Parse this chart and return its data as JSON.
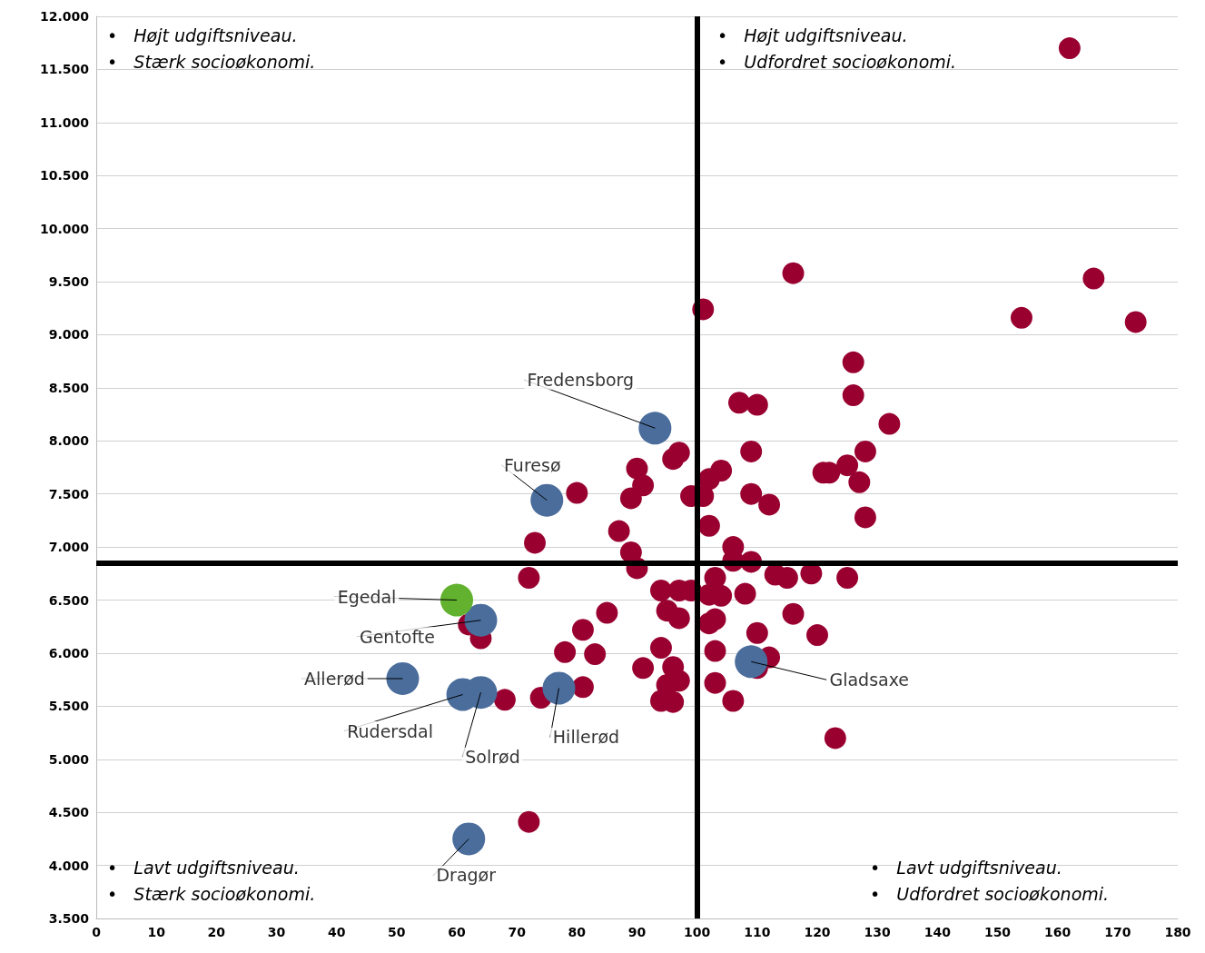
{
  "chart_data": {
    "type": "scatter",
    "xlim": [
      0,
      180
    ],
    "xticks": [
      0,
      10,
      20,
      30,
      40,
      50,
      60,
      70,
      80,
      90,
      100,
      110,
      120,
      130,
      140,
      150,
      160,
      170,
      180
    ],
    "ylim": [
      3500,
      12000
    ],
    "yticks": [
      {
        "value": 3500,
        "label": "3.500"
      },
      {
        "value": 4000,
        "label": "4.000"
      },
      {
        "value": 4500,
        "label": "4.500"
      },
      {
        "value": 5000,
        "label": "5.000"
      },
      {
        "value": 5500,
        "label": "5.500"
      },
      {
        "value": 6000,
        "label": "6.000"
      },
      {
        "value": 6500,
        "label": "6.500"
      },
      {
        "value": 7000,
        "label": "7.000"
      },
      {
        "value": 7500,
        "label": "7.500"
      },
      {
        "value": 8000,
        "label": "8.000"
      },
      {
        "value": 8500,
        "label": "8.500"
      },
      {
        "value": 9000,
        "label": "9.000"
      },
      {
        "value": 9500,
        "label": "9.500"
      },
      {
        "value": 10000,
        "label": "10.000"
      },
      {
        "value": 10500,
        "label": "10.500"
      },
      {
        "value": 11000,
        "label": "11.000"
      },
      {
        "value": 11500,
        "label": "11.500"
      },
      {
        "value": 12000,
        "label": "12.000"
      }
    ],
    "grid": "y",
    "marker": "circle",
    "series": [
      {
        "color": "#990030",
        "x": [
          162,
          116,
          166,
          154,
          173,
          101,
          126,
          126,
          107,
          110,
          132,
          96,
          97,
          109,
          128,
          121,
          122,
          125,
          127,
          128,
          104,
          102,
          80,
          90,
          91,
          89,
          99,
          101,
          109,
          112,
          102,
          87,
          73,
          89,
          106,
          106,
          109,
          90,
          72,
          103,
          113,
          115,
          119,
          125,
          94,
          97,
          99,
          102,
          104,
          108,
          95,
          97,
          85,
          81,
          102,
          103,
          116,
          110,
          120,
          62,
          64,
          78,
          83,
          94,
          103,
          112,
          110,
          91,
          96,
          95,
          97,
          103,
          81,
          68,
          74,
          94,
          96,
          106,
          123,
          72
        ],
        "values": [
          11700,
          9580,
          9530,
          9160,
          9120,
          9240,
          8740,
          8430,
          8360,
          8340,
          8160,
          7830,
          7890,
          7900,
          7900,
          7700,
          7700,
          7770,
          7610,
          7280,
          7720,
          7640,
          7510,
          7740,
          7580,
          7460,
          7480,
          7480,
          7500,
          7400,
          7200,
          7150,
          7040,
          6950,
          7000,
          6870,
          6860,
          6800,
          6710,
          6710,
          6740,
          6710,
          6750,
          6710,
          6590,
          6590,
          6590,
          6550,
          6540,
          6560,
          6400,
          6330,
          6380,
          6220,
          6280,
          6320,
          6370,
          6190,
          6170,
          6270,
          6140,
          6010,
          5990,
          6050,
          6020,
          5960,
          5860,
          5860,
          5870,
          5700,
          5740,
          5720,
          5680,
          5560,
          5580,
          5550,
          5540,
          5550,
          5200,
          4410
        ]
      },
      {
        "color": "#4a6d9c",
        "x": [
          93,
          75,
          64,
          51,
          61,
          64,
          77,
          109,
          62
        ],
        "values": [
          8120,
          7440,
          6310,
          5760,
          5610,
          5630,
          5670,
          5920,
          4250
        ]
      },
      {
        "color": "#62b22f",
        "x": [
          60
        ],
        "values": [
          6500
        ]
      }
    ],
    "ref_lines": [
      {
        "axis": "x",
        "value": 100,
        "color": "#000000"
      },
      {
        "axis": "y",
        "value": 6850,
        "color": "#000000"
      }
    ],
    "annotations": [
      "•   Højt udgiftsniveau.\n•   Stærk socioøkonomi.",
      "•   Højt udgiftsniveau.\n•   Udfordret socioøkonomi.",
      "•   Lavt udgiftsniveau.\n•   Stærk socioøkonomi.",
      "•   Lavt udgiftsniveau.\n•   Udfordret socioøkonomi.",
      {
        "text": "Fredensborg",
        "x": 93,
        "y": 8120
      },
      {
        "text": "Furesø",
        "x": 75,
        "y": 7440
      },
      {
        "text": "Egedal",
        "x": 60,
        "y": 6500
      },
      {
        "text": "Gentofte",
        "x": 64,
        "y": 6310
      },
      {
        "text": "Allerød",
        "x": 51,
        "y": 5760
      },
      {
        "text": "Rudersdal",
        "x": 61,
        "y": 5610
      },
      {
        "text": "Solrød",
        "x": 64,
        "y": 5630
      },
      {
        "text": "Hillerød",
        "x": 77,
        "y": 5670
      },
      {
        "text": "Gladsaxe",
        "x": 109,
        "y": 5920
      },
      {
        "text": "Dragør",
        "x": 62,
        "y": 4250
      }
    ]
  }
}
